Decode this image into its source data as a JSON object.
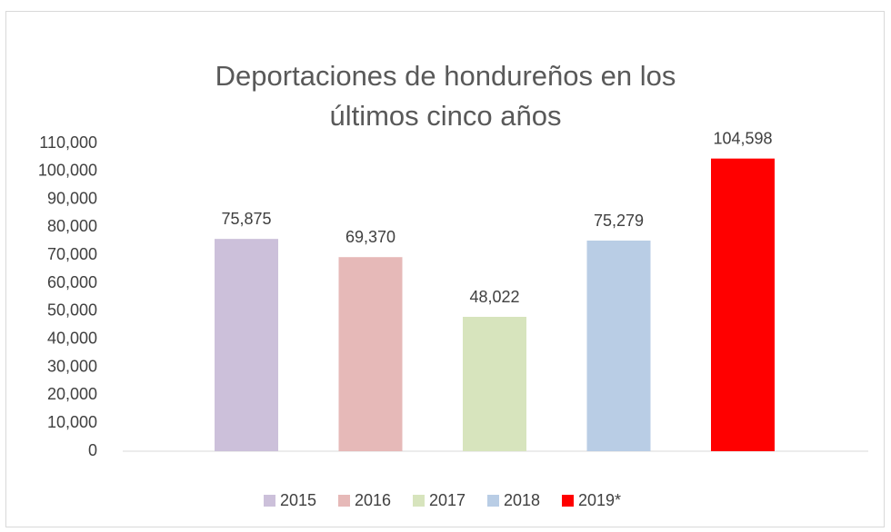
{
  "chart_data": {
    "type": "bar",
    "title": "Deportaciones de hondureños en los últimos cinco años",
    "series": [
      {
        "name": "2015",
        "color": "#ccc0da",
        "values": [
          75875
        ],
        "value_labels": [
          "75,875"
        ]
      },
      {
        "name": "2016",
        "color": "#e6b9b8",
        "values": [
          69370
        ],
        "value_labels": [
          "69,370"
        ]
      },
      {
        "name": "2017",
        "color": "#d7e4bd",
        "values": [
          48022
        ],
        "value_labels": [
          "48,022"
        ]
      },
      {
        "name": "2018",
        "color": "#b9cde5",
        "values": [
          75279
        ],
        "value_labels": [
          "75,279"
        ]
      },
      {
        "name": "2019*",
        "color": "#ff0000",
        "values": [
          104598
        ],
        "value_labels": [
          "104,598"
        ]
      }
    ],
    "ylim": [
      0,
      110000
    ],
    "yticks": [
      0,
      {
        "value": 10000,
        "label": "10,000"
      },
      {
        "value": 20000,
        "label": "20,000"
      },
      {
        "value": 30000,
        "label": "30,000"
      },
      {
        "value": 40000,
        "label": "40,000"
      },
      {
        "value": 50000,
        "label": "50,000"
      },
      {
        "value": 60000,
        "label": "60,000"
      },
      {
        "value": 70000,
        "label": "70,000"
      },
      {
        "value": 80000,
        "label": "80,000"
      },
      {
        "value": 90000,
        "label": "90,000"
      },
      {
        "value": 100000,
        "label": "100,000"
      },
      {
        "value": 110000,
        "label": "110,000"
      }
    ],
    "grid": false,
    "legend": "bottom"
  }
}
